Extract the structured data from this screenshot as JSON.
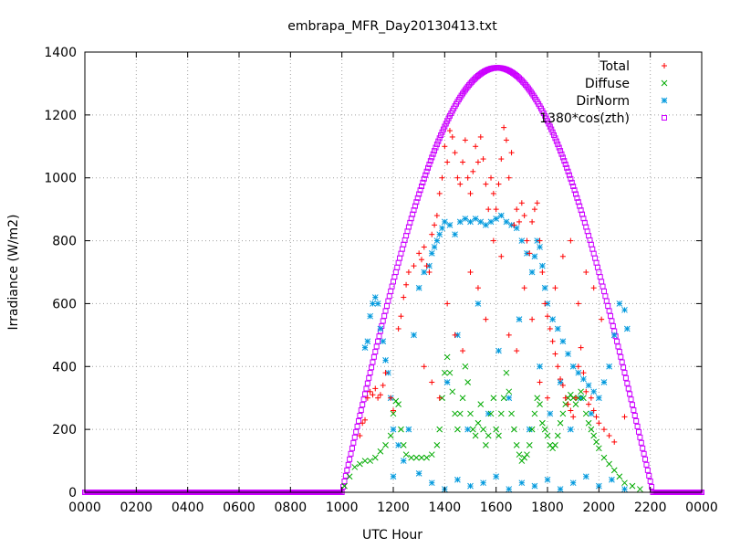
{
  "chart_data": {
    "type": "scatter",
    "title": "embrapa_MFR_Day20130413.txt",
    "xlabel": "UTC Hour",
    "ylabel": "Irradiance (W/m2)",
    "xlim": [
      0,
      24
    ],
    "ylim": [
      0,
      1400
    ],
    "grid": true,
    "legend_position": "top-right",
    "xticks": [
      {
        "value": 0,
        "label": "0000"
      },
      {
        "value": 2,
        "label": "0200"
      },
      {
        "value": 4,
        "label": "0400"
      },
      {
        "value": 6,
        "label": "0600"
      },
      {
        "value": 8,
        "label": "0800"
      },
      {
        "value": 10,
        "label": "1000"
      },
      {
        "value": 12,
        "label": "1200"
      },
      {
        "value": 14,
        "label": "1400"
      },
      {
        "value": 16,
        "label": "1600"
      },
      {
        "value": 18,
        "label": "1800"
      },
      {
        "value": 20,
        "label": "2000"
      },
      {
        "value": 22,
        "label": "2200"
      },
      {
        "value": 24,
        "label": "0000"
      }
    ],
    "yticks": [
      0,
      200,
      400,
      600,
      800,
      1000,
      1200,
      1400
    ],
    "series": [
      {
        "name": "Total",
        "marker": "plus",
        "color": "#ff0000",
        "points": [
          [
            10.7,
            180
          ],
          [
            10.8,
            220
          ],
          [
            10.9,
            230
          ],
          [
            11.0,
            300
          ],
          [
            11.1,
            320
          ],
          [
            11.2,
            310
          ],
          [
            11.3,
            330
          ],
          [
            11.4,
            300
          ],
          [
            11.5,
            310
          ],
          [
            11.6,
            340
          ],
          [
            11.7,
            380
          ],
          [
            11.9,
            300
          ],
          [
            12.0,
            260
          ],
          [
            12.2,
            520
          ],
          [
            12.3,
            560
          ],
          [
            12.4,
            620
          ],
          [
            12.5,
            660
          ],
          [
            12.6,
            700
          ],
          [
            12.8,
            720
          ],
          [
            13.0,
            760
          ],
          [
            13.1,
            740
          ],
          [
            13.2,
            780
          ],
          [
            13.3,
            720
          ],
          [
            13.4,
            700
          ],
          [
            13.5,
            820
          ],
          [
            13.6,
            850
          ],
          [
            13.7,
            880
          ],
          [
            13.8,
            950
          ],
          [
            13.9,
            1000
          ],
          [
            14.0,
            1100
          ],
          [
            14.1,
            1050
          ],
          [
            14.2,
            1150
          ],
          [
            14.3,
            1130
          ],
          [
            14.4,
            1080
          ],
          [
            14.5,
            1000
          ],
          [
            14.6,
            980
          ],
          [
            14.7,
            1050
          ],
          [
            14.8,
            1120
          ],
          [
            14.9,
            1000
          ],
          [
            15.0,
            950
          ],
          [
            15.1,
            1020
          ],
          [
            15.2,
            1100
          ],
          [
            15.3,
            1050
          ],
          [
            15.4,
            1130
          ],
          [
            15.5,
            1060
          ],
          [
            15.6,
            980
          ],
          [
            15.7,
            900
          ],
          [
            15.8,
            1000
          ],
          [
            15.9,
            950
          ],
          [
            16.0,
            900
          ],
          [
            16.1,
            980
          ],
          [
            16.2,
            1060
          ],
          [
            16.3,
            1160
          ],
          [
            16.4,
            1120
          ],
          [
            16.5,
            1000
          ],
          [
            16.6,
            1080
          ],
          [
            16.7,
            850
          ],
          [
            16.8,
            900
          ],
          [
            16.9,
            860
          ],
          [
            17.0,
            920
          ],
          [
            17.1,
            880
          ],
          [
            17.2,
            800
          ],
          [
            17.3,
            760
          ],
          [
            17.4,
            860
          ],
          [
            17.5,
            900
          ],
          [
            17.6,
            920
          ],
          [
            17.7,
            800
          ],
          [
            17.8,
            700
          ],
          [
            17.9,
            600
          ],
          [
            18.0,
            560
          ],
          [
            18.1,
            520
          ],
          [
            18.2,
            480
          ],
          [
            18.3,
            440
          ],
          [
            18.4,
            400
          ],
          [
            18.5,
            360
          ],
          [
            18.6,
            340
          ],
          [
            18.7,
            300
          ],
          [
            18.8,
            280
          ],
          [
            18.9,
            260
          ],
          [
            19.0,
            240
          ],
          [
            19.1,
            300
          ],
          [
            19.2,
            400
          ],
          [
            19.3,
            460
          ],
          [
            19.4,
            380
          ],
          [
            19.5,
            320
          ],
          [
            19.6,
            280
          ],
          [
            19.7,
            300
          ],
          [
            19.8,
            260
          ],
          [
            19.9,
            240
          ],
          [
            20.0,
            220
          ],
          [
            20.2,
            200
          ],
          [
            20.4,
            180
          ],
          [
            20.6,
            160
          ],
          [
            21.0,
            240
          ],
          [
            13.2,
            400
          ],
          [
            13.5,
            350
          ],
          [
            13.8,
            300
          ],
          [
            14.1,
            600
          ],
          [
            14.4,
            500
          ],
          [
            14.7,
            450
          ],
          [
            15.0,
            700
          ],
          [
            15.3,
            650
          ],
          [
            15.6,
            550
          ],
          [
            15.9,
            800
          ],
          [
            16.2,
            750
          ],
          [
            16.5,
            500
          ],
          [
            16.8,
            450
          ],
          [
            17.1,
            650
          ],
          [
            17.4,
            550
          ],
          [
            17.7,
            350
          ],
          [
            18.0,
            300
          ],
          [
            18.3,
            650
          ],
          [
            18.6,
            750
          ],
          [
            18.9,
            800
          ],
          [
            19.2,
            600
          ],
          [
            19.5,
            700
          ],
          [
            19.8,
            650
          ],
          [
            20.1,
            550
          ]
        ]
      },
      {
        "name": "Diffuse",
        "marker": "cross",
        "color": "#00aa00",
        "points": [
          [
            10.1,
            20
          ],
          [
            10.3,
            50
          ],
          [
            10.5,
            80
          ],
          [
            10.7,
            90
          ],
          [
            10.9,
            100
          ],
          [
            11.1,
            100
          ],
          [
            11.3,
            110
          ],
          [
            11.5,
            130
          ],
          [
            11.7,
            150
          ],
          [
            11.9,
            180
          ],
          [
            12.0,
            250
          ],
          [
            12.1,
            290
          ],
          [
            12.2,
            280
          ],
          [
            12.3,
            200
          ],
          [
            12.4,
            150
          ],
          [
            12.5,
            120
          ],
          [
            12.7,
            110
          ],
          [
            12.9,
            110
          ],
          [
            13.1,
            110
          ],
          [
            13.3,
            110
          ],
          [
            13.5,
            120
          ],
          [
            13.7,
            150
          ],
          [
            13.8,
            200
          ],
          [
            13.9,
            300
          ],
          [
            14.0,
            380
          ],
          [
            14.1,
            430
          ],
          [
            14.2,
            380
          ],
          [
            14.3,
            320
          ],
          [
            14.4,
            250
          ],
          [
            14.5,
            200
          ],
          [
            14.6,
            250
          ],
          [
            14.7,
            300
          ],
          [
            14.8,
            400
          ],
          [
            14.9,
            350
          ],
          [
            15.0,
            250
          ],
          [
            15.1,
            200
          ],
          [
            15.2,
            180
          ],
          [
            15.3,
            220
          ],
          [
            15.4,
            280
          ],
          [
            15.5,
            200
          ],
          [
            15.6,
            150
          ],
          [
            15.7,
            180
          ],
          [
            15.8,
            250
          ],
          [
            15.9,
            300
          ],
          [
            16.0,
            200
          ],
          [
            16.1,
            180
          ],
          [
            16.2,
            250
          ],
          [
            16.3,
            300
          ],
          [
            16.4,
            380
          ],
          [
            16.5,
            320
          ],
          [
            16.6,
            250
          ],
          [
            16.7,
            200
          ],
          [
            16.8,
            150
          ],
          [
            16.9,
            120
          ],
          [
            17.0,
            100
          ],
          [
            17.1,
            110
          ],
          [
            17.2,
            120
          ],
          [
            17.3,
            150
          ],
          [
            17.4,
            200
          ],
          [
            17.5,
            250
          ],
          [
            17.6,
            300
          ],
          [
            17.7,
            280
          ],
          [
            17.8,
            220
          ],
          [
            17.9,
            200
          ],
          [
            18.0,
            180
          ],
          [
            18.1,
            150
          ],
          [
            18.2,
            140
          ],
          [
            18.3,
            150
          ],
          [
            18.4,
            180
          ],
          [
            18.5,
            220
          ],
          [
            18.6,
            250
          ],
          [
            18.7,
            280
          ],
          [
            18.8,
            300
          ],
          [
            18.9,
            310
          ],
          [
            19.0,
            300
          ],
          [
            19.1,
            280
          ],
          [
            19.2,
            300
          ],
          [
            19.3,
            320
          ],
          [
            19.4,
            300
          ],
          [
            19.5,
            250
          ],
          [
            19.6,
            220
          ],
          [
            19.7,
            200
          ],
          [
            19.8,
            180
          ],
          [
            19.9,
            160
          ],
          [
            20.0,
            140
          ],
          [
            20.2,
            110
          ],
          [
            20.4,
            90
          ],
          [
            20.6,
            70
          ],
          [
            20.8,
            50
          ],
          [
            21.0,
            30
          ],
          [
            21.3,
            20
          ],
          [
            21.6,
            10
          ]
        ]
      },
      {
        "name": "DirNorm",
        "marker": "star",
        "color": "#0099dd",
        "points": [
          [
            10.9,
            460
          ],
          [
            11.0,
            480
          ],
          [
            11.1,
            560
          ],
          [
            11.2,
            600
          ],
          [
            11.3,
            620
          ],
          [
            11.4,
            600
          ],
          [
            11.5,
            520
          ],
          [
            11.6,
            480
          ],
          [
            11.7,
            420
          ],
          [
            11.8,
            380
          ],
          [
            11.9,
            300
          ],
          [
            12.0,
            200
          ],
          [
            12.2,
            150
          ],
          [
            12.4,
            100
          ],
          [
            12.6,
            200
          ],
          [
            12.8,
            500
          ],
          [
            13.0,
            650
          ],
          [
            13.2,
            700
          ],
          [
            13.4,
            720
          ],
          [
            13.5,
            760
          ],
          [
            13.6,
            780
          ],
          [
            13.7,
            800
          ],
          [
            13.8,
            820
          ],
          [
            13.9,
            840
          ],
          [
            14.0,
            860
          ],
          [
            14.2,
            850
          ],
          [
            14.4,
            820
          ],
          [
            14.6,
            860
          ],
          [
            14.8,
            870
          ],
          [
            15.0,
            860
          ],
          [
            15.2,
            870
          ],
          [
            15.4,
            860
          ],
          [
            15.6,
            850
          ],
          [
            15.8,
            860
          ],
          [
            16.0,
            870
          ],
          [
            16.2,
            880
          ],
          [
            16.4,
            860
          ],
          [
            16.6,
            850
          ],
          [
            16.8,
            840
          ],
          [
            17.0,
            800
          ],
          [
            17.2,
            760
          ],
          [
            17.4,
            700
          ],
          [
            17.5,
            750
          ],
          [
            17.6,
            800
          ],
          [
            17.7,
            780
          ],
          [
            17.8,
            720
          ],
          [
            17.9,
            650
          ],
          [
            18.0,
            600
          ],
          [
            18.2,
            550
          ],
          [
            18.4,
            520
          ],
          [
            18.6,
            480
          ],
          [
            18.8,
            440
          ],
          [
            19.0,
            400
          ],
          [
            19.2,
            380
          ],
          [
            19.4,
            360
          ],
          [
            19.6,
            340
          ],
          [
            19.8,
            320
          ],
          [
            20.0,
            300
          ],
          [
            20.2,
            350
          ],
          [
            20.4,
            400
          ],
          [
            20.6,
            500
          ],
          [
            20.8,
            600
          ],
          [
            21.0,
            580
          ],
          [
            21.1,
            520
          ],
          [
            12.0,
            50
          ],
          [
            13.0,
            60
          ],
          [
            13.5,
            30
          ],
          [
            14.0,
            10
          ],
          [
            14.5,
            40
          ],
          [
            15.0,
            20
          ],
          [
            15.5,
            30
          ],
          [
            16.0,
            50
          ],
          [
            16.5,
            10
          ],
          [
            17.0,
            30
          ],
          [
            17.5,
            20
          ],
          [
            18.0,
            40
          ],
          [
            18.5,
            10
          ],
          [
            19.0,
            30
          ],
          [
            19.5,
            50
          ],
          [
            20.0,
            20
          ],
          [
            20.5,
            40
          ],
          [
            21.0,
            10
          ],
          [
            14.1,
            350
          ],
          [
            14.5,
            500
          ],
          [
            14.9,
            200
          ],
          [
            15.3,
            600
          ],
          [
            15.7,
            250
          ],
          [
            16.1,
            450
          ],
          [
            16.5,
            300
          ],
          [
            16.9,
            550
          ],
          [
            17.3,
            200
          ],
          [
            17.7,
            400
          ],
          [
            18.1,
            250
          ],
          [
            18.5,
            350
          ],
          [
            18.9,
            200
          ],
          [
            19.3,
            300
          ],
          [
            19.7,
            250
          ]
        ]
      },
      {
        "name": "1380*cos(zth)",
        "marker": "square",
        "color": "#cc00ff",
        "points": []
      }
    ]
  }
}
